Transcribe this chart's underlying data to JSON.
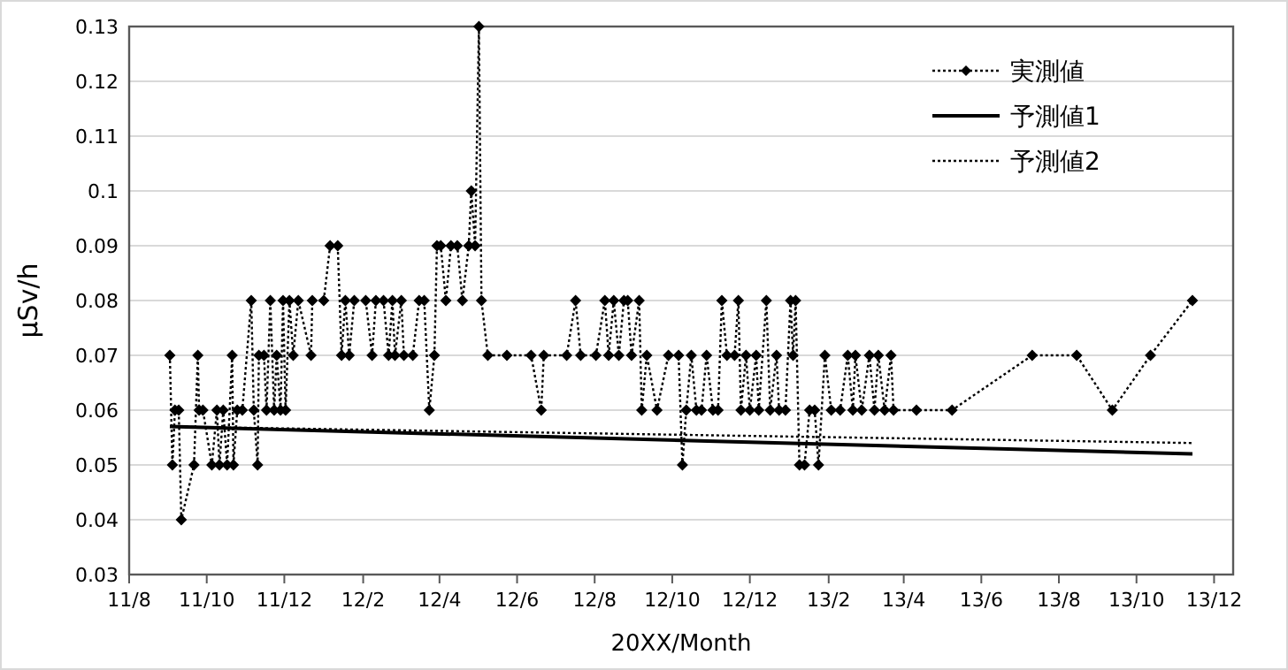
{
  "chart_data": {
    "type": "line",
    "xlabel": "20XX/Month",
    "ylabel": "μSv/h",
    "xlim": [
      "2011-08-01",
      "2013-12-16"
    ],
    "xticks": [
      {
        "value": "2011-08-01",
        "label": "11/8"
      },
      {
        "value": "2011-10-01",
        "label": "11/10"
      },
      {
        "value": "2011-12-01",
        "label": "11/12"
      },
      {
        "value": "2012-02-01",
        "label": "12/2"
      },
      {
        "value": "2012-04-01",
        "label": "12/4"
      },
      {
        "value": "2012-06-01",
        "label": "12/6"
      },
      {
        "value": "2012-08-01",
        "label": "12/8"
      },
      {
        "value": "2012-10-01",
        "label": "12/10"
      },
      {
        "value": "2012-12-01",
        "label": "12/12"
      },
      {
        "value": "2013-02-01",
        "label": "13/2"
      },
      {
        "value": "2013-04-01",
        "label": "13/4"
      },
      {
        "value": "2013-06-01",
        "label": "13/6"
      },
      {
        "value": "2013-08-01",
        "label": "13/8"
      },
      {
        "value": "2013-10-01",
        "label": "13/10"
      },
      {
        "value": "2013-12-01",
        "label": "13/12"
      }
    ],
    "ylim": [
      0.03,
      0.13
    ],
    "yticks": [
      0.03,
      0.04,
      0.05,
      0.06,
      0.07,
      0.08,
      0.09,
      0.1,
      0.11,
      0.12,
      0.13
    ],
    "grid": "y",
    "legend": "top right",
    "series": [
      {
        "name": "実測値",
        "color": "#000000",
        "marker": "diamond",
        "line_style": "dotted",
        "x": [
          "2011-09-02",
          "2011-09-04",
          "2011-09-06",
          "2011-09-09",
          "2011-09-11",
          "2011-09-21",
          "2011-09-24",
          "2011-09-25",
          "2011-09-28",
          "2011-10-05",
          "2011-10-09",
          "2011-10-11",
          "2011-10-14",
          "2011-10-17",
          "2011-10-21",
          "2011-10-22",
          "2011-10-25",
          "2011-10-29",
          "2011-11-05",
          "2011-11-07",
          "2011-11-10",
          "2011-11-11",
          "2011-11-15",
          "2011-11-17",
          "2011-11-20",
          "2011-11-23",
          "2011-11-25",
          "2011-11-28",
          "2011-11-30",
          "2011-12-02",
          "2011-12-05",
          "2011-12-08",
          "2011-12-12",
          "2011-12-22",
          "2011-12-23",
          "2012-01-01",
          "2012-01-06",
          "2012-01-12",
          "2012-01-15",
          "2012-01-18",
          "2012-01-21",
          "2012-01-25",
          "2012-02-03",
          "2012-02-08",
          "2012-02-11",
          "2012-02-17",
          "2012-02-21",
          "2012-02-24",
          "2012-02-26",
          "2012-03-02",
          "2012-03-04",
          "2012-03-11",
          "2012-03-16",
          "2012-03-20",
          "2012-03-24",
          "2012-03-28",
          "2012-03-30",
          "2012-04-02",
          "2012-04-06",
          "2012-04-10",
          "2012-04-15",
          "2012-04-19",
          "2012-04-24",
          "2012-04-26",
          "2012-04-29",
          "2012-05-02",
          "2012-05-04",
          "2012-05-09",
          "2012-05-24",
          "2012-06-12",
          "2012-06-20",
          "2012-06-22",
          "2012-07-10",
          "2012-07-17",
          "2012-07-21",
          "2012-08-02",
          "2012-08-09",
          "2012-08-12",
          "2012-08-16",
          "2012-08-20",
          "2012-08-24",
          "2012-08-27",
          "2012-08-30",
          "2012-09-05",
          "2012-09-07",
          "2012-09-11",
          "2012-09-19",
          "2012-09-28",
          "2012-10-06",
          "2012-10-09",
          "2012-10-12",
          "2012-10-16",
          "2012-10-20",
          "2012-10-24",
          "2012-10-28",
          "2012-11-02",
          "2012-11-06",
          "2012-11-09",
          "2012-11-13",
          "2012-11-19",
          "2012-11-22",
          "2012-11-24",
          "2012-11-28",
          "2012-12-01",
          "2012-12-06",
          "2012-12-08",
          "2012-12-14",
          "2012-12-17",
          "2012-12-22",
          "2012-12-24",
          "2012-12-29",
          "2013-01-02",
          "2013-01-04",
          "2013-01-06",
          "2013-01-09",
          "2013-01-13",
          "2013-01-17",
          "2013-01-21",
          "2013-01-24",
          "2013-01-29",
          "2013-02-03",
          "2013-02-10",
          "2013-02-16",
          "2013-02-20",
          "2013-02-22",
          "2013-02-27",
          "2013-03-05",
          "2013-03-09",
          "2013-03-12",
          "2013-03-17",
          "2013-03-22",
          "2013-03-24",
          "2013-04-11",
          "2013-05-09",
          "2013-07-11",
          "2013-08-15",
          "2013-09-12",
          "2013-10-12",
          "2013-11-14"
        ],
        "values": [
          0.07,
          0.05,
          0.06,
          0.06,
          0.04,
          0.05,
          0.07,
          0.06,
          0.06,
          0.05,
          0.06,
          0.05,
          0.06,
          0.05,
          0.07,
          0.05,
          0.06,
          0.06,
          0.08,
          0.06,
          0.05,
          0.07,
          0.07,
          0.06,
          0.08,
          0.06,
          0.07,
          0.06,
          0.08,
          0.06,
          0.08,
          0.07,
          0.08,
          0.07,
          0.08,
          0.08,
          0.09,
          0.09,
          0.07,
          0.08,
          0.07,
          0.08,
          0.08,
          0.07,
          0.08,
          0.08,
          0.07,
          0.08,
          0.07,
          0.08,
          0.07,
          0.07,
          0.08,
          0.08,
          0.06,
          0.07,
          0.09,
          0.09,
          0.08,
          0.09,
          0.09,
          0.08,
          0.09,
          0.1,
          0.09,
          0.13,
          0.08,
          0.07,
          0.07,
          0.07,
          0.06,
          0.07,
          0.07,
          0.08,
          0.07,
          0.07,
          0.08,
          0.07,
          0.08,
          0.07,
          0.08,
          0.08,
          0.07,
          0.08,
          0.06,
          0.07,
          0.06,
          0.07,
          0.07,
          0.05,
          0.06,
          0.07,
          0.06,
          0.06,
          0.07,
          0.06,
          0.06,
          0.08,
          0.07,
          0.07,
          0.08,
          0.06,
          0.07,
          0.06,
          0.07,
          0.06,
          0.08,
          0.06,
          0.07,
          0.06,
          0.06,
          0.08,
          0.07,
          0.08,
          0.05,
          0.05,
          0.06,
          0.06,
          0.05,
          0.07,
          0.06,
          0.06,
          0.07,
          0.06,
          0.07,
          0.06,
          0.07,
          0.06,
          0.07,
          0.06,
          0.07,
          0.06,
          0.06,
          0.06,
          0.07,
          0.07,
          0.06,
          0.07,
          0.08
        ]
      },
      {
        "name": "予測値1",
        "color": "#000000",
        "marker": "none",
        "line_style": "solid",
        "x": [
          "2011-09-02",
          "2013-11-14"
        ],
        "values": [
          0.057,
          0.052
        ]
      },
      {
        "name": "予測値2",
        "color": "#000000",
        "marker": "none",
        "line_style": "dotted",
        "x": [
          "2011-09-02",
          "2013-11-14"
        ],
        "values": [
          0.057,
          0.054
        ]
      }
    ]
  }
}
